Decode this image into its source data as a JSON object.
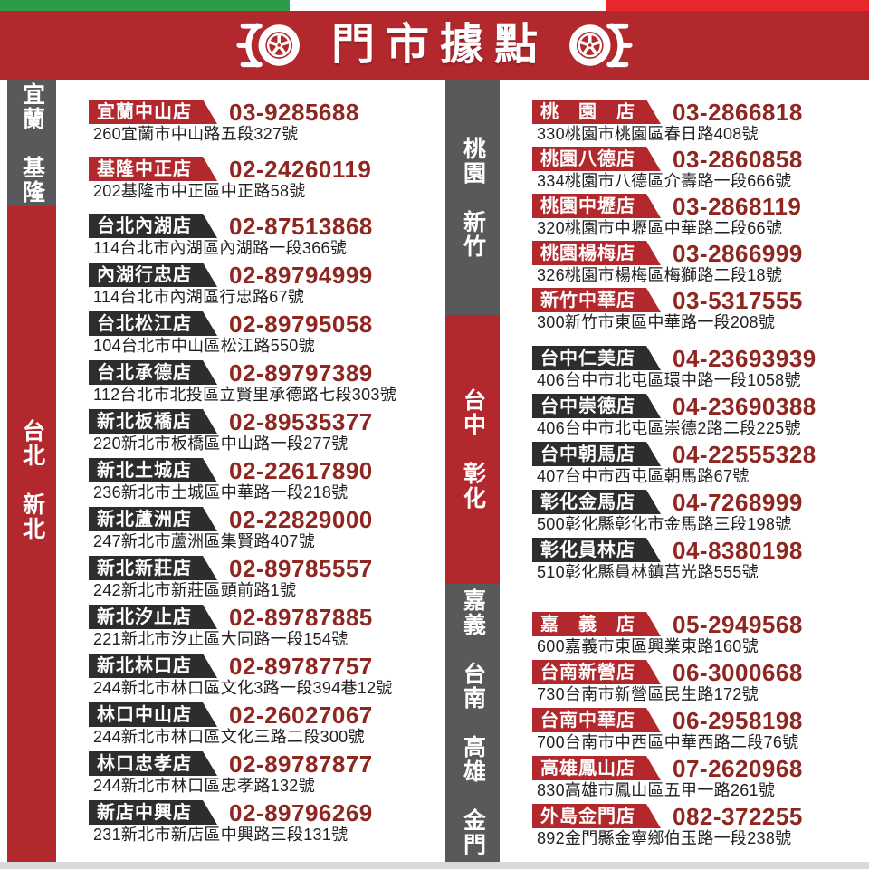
{
  "header": {
    "title": "門市據點",
    "left_icon": "tire-wheel-icon",
    "right_icon": "tire-wheel-icon"
  },
  "colors": {
    "band_red": "#b3282d",
    "flag_green": "#2c9c49",
    "flag_white": "#ffffff",
    "flag_red": "#e8282b",
    "badge_red": "#b2282c",
    "badge_dark": "#2d2c2e",
    "phone_red": "#8f261f",
    "address_ink": "#232020",
    "sidebar_dark": "#58595b",
    "sidebar_red": "#b2282c",
    "footer_gray": "#d9d9d9"
  },
  "left_sidebar": {
    "segments": [
      {
        "label": "宜蘭　基隆",
        "color": "dark"
      },
      {
        "label": "台北　新北",
        "color": "red"
      }
    ]
  },
  "middle_sidebar": {
    "segments": [
      {
        "label": "桃園　新竹",
        "color": "dark"
      },
      {
        "label": "台中　彰化",
        "color": "red"
      },
      {
        "label": "嘉義　台南　高雄　金門",
        "color": "dark"
      }
    ]
  },
  "columns": {
    "left": {
      "groups": [
        {
          "region": "yilan-keelung",
          "stores": [
            {
              "name": "宜蘭中山店",
              "badge": "red",
              "phone": "03-9285688",
              "address": "260宜蘭市中山路五段327號"
            },
            {
              "name": "基隆中正店",
              "badge": "red",
              "phone": "02-24260119",
              "address": "202基隆市中正區中正路58號"
            }
          ]
        },
        {
          "region": "taipei-new-taipei",
          "stores": [
            {
              "name": "台北內湖店",
              "badge": "dark",
              "phone": "02-87513868",
              "address": "114台北市內湖區內湖路一段366號"
            },
            {
              "name": "內湖行忠店",
              "badge": "dark",
              "phone": "02-89794999",
              "address": "114台北市內湖區行忠路67號"
            },
            {
              "name": "台北松江店",
              "badge": "dark",
              "phone": "02-89795058",
              "address": "104台北市中山區松江路550號"
            },
            {
              "name": "台北承德店",
              "badge": "dark",
              "phone": "02-89797389",
              "address": "112台北市北投區立賢里承德路七段303號"
            },
            {
              "name": "新北板橋店",
              "badge": "dark",
              "phone": "02-89535377",
              "address": "220新北市板橋區中山路一段277號"
            },
            {
              "name": "新北土城店",
              "badge": "dark",
              "phone": "02-22617890",
              "address": "236新北市土城區中華路一段218號"
            },
            {
              "name": "新北蘆洲店",
              "badge": "dark",
              "phone": "02-22829000",
              "address": "247新北市蘆洲區集賢路407號"
            },
            {
              "name": "新北新莊店",
              "badge": "dark",
              "phone": "02-89785557",
              "address": "242新北市新莊區頭前路1號"
            },
            {
              "name": "新北汐止店",
              "badge": "dark",
              "phone": "02-89787885",
              "address": "221新北市汐止區大同路一段154號"
            },
            {
              "name": "新北林口店",
              "badge": "dark",
              "phone": "02-89787757",
              "address": "244新北市林口區文化3路一段394巷12號"
            },
            {
              "name": "林口中山店",
              "badge": "dark",
              "phone": "02-26027067",
              "address": "244新北市林口區文化三路二段300號"
            },
            {
              "name": "林口忠孝店",
              "badge": "dark",
              "phone": "02-89787877",
              "address": "244新北市林口區忠孝路132號"
            },
            {
              "name": "新店中興店",
              "badge": "dark",
              "phone": "02-89796269",
              "address": "231新北市新店區中興路三段131號"
            }
          ]
        }
      ]
    },
    "right": {
      "groups": [
        {
          "region": "taoyuan-hsinchu",
          "stores": [
            {
              "name": "桃　園　店",
              "badge": "red",
              "phone": "03-2866818",
              "address": "330桃園市桃園區春日路408號"
            },
            {
              "name": "桃園八德店",
              "badge": "red",
              "phone": "03-2860858",
              "address": "334桃園市八德區介壽路一段666號"
            },
            {
              "name": "桃園中壢店",
              "badge": "red",
              "phone": "03-2868119",
              "address": "320桃園市中壢區中華路二段66號"
            },
            {
              "name": "桃園楊梅店",
              "badge": "red",
              "phone": "03-2866999",
              "address": "326桃園市楊梅區梅獅路二段18號"
            },
            {
              "name": "新竹中華店",
              "badge": "red",
              "phone": "03-5317555",
              "address": "300新竹市東區中華路一段208號"
            }
          ]
        },
        {
          "region": "taichung-changhua",
          "stores": [
            {
              "name": "台中仁美店",
              "badge": "dark",
              "phone": "04-23693939",
              "address": "406台中市北屯區環中路一段1058號"
            },
            {
              "name": "台中崇德店",
              "badge": "dark",
              "phone": "04-23690388",
              "address": "406台中市北屯區崇德2路二段225號"
            },
            {
              "name": "台中朝馬店",
              "badge": "dark",
              "phone": "04-22555328",
              "address": "407台中市西屯區朝馬路67號"
            },
            {
              "name": "彰化金馬店",
              "badge": "dark",
              "phone": "04-7268999",
              "address": "500彰化縣彰化市金馬路三段198號"
            },
            {
              "name": "彰化員林店",
              "badge": "dark",
              "phone": "04-8380198",
              "address": "510彰化縣員林鎮莒光路555號"
            }
          ]
        },
        {
          "region": "chiayi-tainan-kaohsiung-kinmen",
          "stores": [
            {
              "name": "嘉　義　店",
              "badge": "red",
              "phone": "05-2949568",
              "address": "600嘉義市東區興業東路160號"
            },
            {
              "name": "台南新營店",
              "badge": "red",
              "phone": "06-3000668",
              "address": "730台南市新營區民生路172號"
            },
            {
              "name": "台南中華店",
              "badge": "red",
              "phone": "06-2958198",
              "address": "700台南市中西區中華西路二段76號"
            },
            {
              "name": "高雄鳳山店",
              "badge": "red",
              "phone": "07-2620968",
              "address": "830高雄市鳳山區五甲一路261號"
            },
            {
              "name": "外島金門店",
              "badge": "red",
              "phone": "082-372255",
              "address": "892金門縣金寧鄉伯玉路一段238號"
            }
          ]
        }
      ]
    }
  }
}
